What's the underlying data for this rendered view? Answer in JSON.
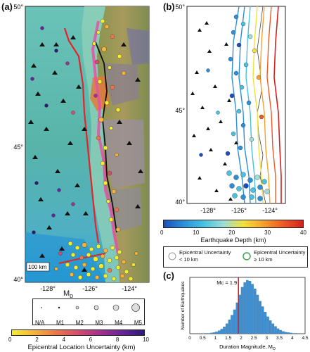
{
  "panel_a": {
    "label": "(a)",
    "lat_ticks": [
      "50°",
      "45°",
      "40°"
    ],
    "lon_ticks": [
      "-128°",
      "-126°",
      "-124°"
    ],
    "scale_bar": "100 km",
    "magnitude_legend": {
      "title": "M",
      "title_sub": "D",
      "entries": [
        "N/A",
        "M1",
        "M2",
        "M3",
        "M4",
        "M5"
      ]
    },
    "colorbar": {
      "ticks": [
        "0",
        "2",
        "4",
        "6",
        "8",
        "10"
      ],
      "label": "Epicentral Location Uncertainty (km)",
      "colors": [
        "#f4ee2f",
        "#f6b33a",
        "#ee7648",
        "#d64c6c",
        "#a42f8e",
        "#6a249a",
        "#2b1a78"
      ]
    }
  },
  "panel_b": {
    "label": "(b)",
    "lat_ticks": [
      "50°",
      "45°",
      "40°"
    ],
    "lon_ticks": [
      "-128°",
      "-126°",
      "-124°"
    ],
    "colorbar": {
      "ticks": [
        "0",
        "10",
        "20",
        "30",
        "40"
      ],
      "label": "Earthquake Depth (km)",
      "colors": [
        "#1d4fb8",
        "#2d8fd8",
        "#47c2e0",
        "#9fdcd8",
        "#f2e23a",
        "#f4a12d",
        "#ee5a23",
        "#d42020"
      ]
    },
    "legend": {
      "small_line1": "Epicentral Uncertainty",
      "small_line2": "< 10 km",
      "large_line1": "Epicentral Uncertainty",
      "large_line2": "≥ 10 km"
    }
  },
  "panel_c": {
    "label": "(c)",
    "mc_label": "Mc = 1.9",
    "ylabel_line1": "Number of Earthquakes",
    "xlabel": "Duration Magnitude, M",
    "xlabel_sub": "D",
    "x_ticks": [
      "0",
      "0.5",
      "1",
      "1.5",
      "2",
      "2.5",
      "3",
      "3.5",
      "4",
      "4.5"
    ]
  },
  "chart_data": {
    "type": "bar",
    "x": [
      0.0,
      0.1,
      0.2,
      0.3,
      0.4,
      0.5,
      0.6,
      0.7,
      0.8,
      0.9,
      1.0,
      1.1,
      1.2,
      1.3,
      1.4,
      1.5,
      1.6,
      1.7,
      1.8,
      1.9,
      2.0,
      2.1,
      2.2,
      2.3,
      2.4,
      2.5,
      2.6,
      2.7,
      2.8,
      2.9,
      3.0,
      3.1,
      3.2,
      3.3,
      3.4,
      3.5,
      3.6,
      3.7,
      3.8,
      3.9,
      4.0,
      4.1,
      4.2,
      4.3,
      4.4
    ],
    "values": [
      0,
      0,
      0,
      0,
      0,
      0,
      1,
      1,
      2,
      3,
      5,
      8,
      12,
      18,
      26,
      36,
      48,
      62,
      80,
      100,
      120,
      132,
      138,
      136,
      128,
      116,
      100,
      84,
      70,
      56,
      44,
      34,
      26,
      19,
      13,
      9,
      6,
      4,
      3,
      2,
      1,
      1,
      0,
      0,
      0
    ],
    "xlim": [
      0,
      4.5
    ],
    "mc": 1.9,
    "xlabel": "Duration Magnitude, MD",
    "ylabel": "Number of Earthquakes"
  }
}
